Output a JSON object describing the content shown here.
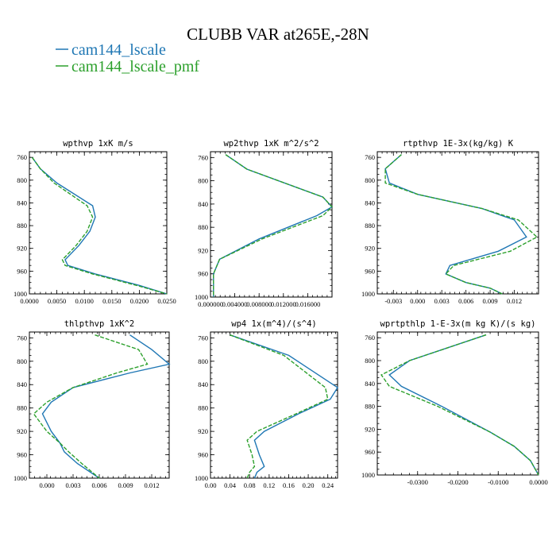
{
  "title": "CLUBB VAR at265E,-28N",
  "legend": [
    {
      "name": "cam144_lscale",
      "color": "#1f77b4",
      "dash": "solid"
    },
    {
      "name": "cam144_lscale_pmf",
      "color": "#2ca02c",
      "dash": "dashed"
    }
  ],
  "chart_data": [
    {
      "type": "line",
      "title": "wpthvp  1xK m/s",
      "xlim": [
        0,
        0.025
      ],
      "ylim": [
        750,
        1000
      ],
      "y_inverted": true,
      "xticks": [
        0,
        0.005,
        0.01,
        0.015,
        0.02,
        0.025
      ],
      "xtick_labels": [
        "0.0000",
        "0.0050",
        "0.0100",
        "0.0150",
        "0.0200",
        "0.0250"
      ],
      "yticks": [
        760,
        800,
        840,
        880,
        920,
        960,
        1000
      ],
      "ytick_labels": [
        "760",
        "800",
        "840",
        "880",
        "920",
        "960",
        "1000"
      ],
      "series": [
        {
          "name": "cam144_lscale",
          "x": [
            0.0005,
            0.002,
            0.005,
            0.0115,
            0.012,
            0.011,
            0.009,
            0.0065,
            0.007,
            0.012,
            0.02,
            0.025
          ],
          "y": [
            760,
            780,
            805,
            845,
            865,
            890,
            915,
            940,
            950,
            965,
            985,
            1000
          ]
        },
        {
          "name": "cam144_lscale_pmf",
          "x": [
            0.0005,
            0.002,
            0.0045,
            0.0105,
            0.0115,
            0.0105,
            0.0085,
            0.006,
            0.0065,
            0.0115,
            0.0195,
            0.025
          ],
          "y": [
            760,
            780,
            805,
            845,
            865,
            890,
            915,
            940,
            950,
            965,
            985,
            1000
          ]
        }
      ]
    },
    {
      "type": "line",
      "title": "wp2thvp  1xK m^2/s^2",
      "xlim": [
        0,
        0.02
      ],
      "ylim": [
        750,
        1000
      ],
      "y_inverted": true,
      "xticks": [
        0,
        0.004,
        0.008,
        0.012,
        0.016
      ],
      "xtick_labels": [
        "0.000000",
        "0.004000",
        "0.008000",
        "0.012000",
        "0.016000"
      ],
      "yticks": [
        760,
        800,
        840,
        880,
        920,
        960,
        1000
      ],
      "ytick_labels": [
        "760",
        "800",
        "840",
        "880",
        "920",
        "960",
        "1000"
      ],
      "series": [
        {
          "name": "cam144_lscale",
          "x": [
            0.0025,
            0.006,
            0.0185,
            0.02,
            0.0175,
            0.008,
            0.0015,
            0.0005,
            0.0005,
            0.0005
          ],
          "y": [
            755,
            780,
            828,
            845,
            860,
            900,
            935,
            960,
            980,
            1000
          ]
        },
        {
          "name": "cam144_lscale_pmf",
          "x": [
            0.0025,
            0.006,
            0.0185,
            0.02,
            0.0185,
            0.0085,
            0.0015,
            0.0005,
            0.0005,
            0.0005
          ],
          "y": [
            755,
            780,
            828,
            845,
            860,
            900,
            935,
            960,
            980,
            1000
          ]
        }
      ]
    },
    {
      "type": "line",
      "title": "rtpthvp  1E-3x(kg/kg) K",
      "xlim": [
        -0.005,
        0.015
      ],
      "ylim": [
        750,
        1000
      ],
      "y_inverted": true,
      "xticks": [
        -0.003,
        0,
        0.003,
        0.006,
        0.009,
        0.012
      ],
      "xtick_labels": [
        "-0.003",
        "0.000",
        "0.003",
        "0.006",
        "0.009",
        "0.012"
      ],
      "yticks": [
        760,
        800,
        840,
        880,
        920,
        960,
        1000
      ],
      "ytick_labels": [
        "760",
        "800",
        "840",
        "880",
        "920",
        "960",
        "1000"
      ],
      "series": [
        {
          "name": "cam144_lscale",
          "x": [
            -0.002,
            -0.004,
            -0.0035,
            0,
            0.008,
            0.012,
            0.0135,
            0.01,
            0.004,
            0.0035,
            0.006,
            0.009,
            0.0105
          ],
          "y": [
            755,
            780,
            805,
            825,
            850,
            870,
            900,
            925,
            950,
            965,
            980,
            990,
            1000
          ]
        },
        {
          "name": "cam144_lscale_pmf",
          "x": [
            -0.002,
            -0.004,
            -0.004,
            0,
            0.008,
            0.0125,
            0.0148,
            0.0115,
            0.0045,
            0.0035,
            0.006,
            0.009,
            0.0105
          ],
          "y": [
            755,
            780,
            805,
            825,
            850,
            870,
            900,
            925,
            950,
            965,
            980,
            990,
            1000
          ]
        }
      ]
    },
    {
      "type": "line",
      "title": "thlpthvp  1xK^2",
      "xlim": [
        -0.002,
        0.014
      ],
      "ylim": [
        750,
        1000
      ],
      "y_inverted": true,
      "xticks": [
        0,
        0.003,
        0.006,
        0.009,
        0.012
      ],
      "xtick_labels": [
        "0.000",
        "0.003",
        "0.006",
        "0.009",
        "0.012"
      ],
      "yticks": [
        760,
        800,
        840,
        880,
        920,
        960,
        1000
      ],
      "ytick_labels": [
        "760",
        "800",
        "840",
        "880",
        "920",
        "960",
        "1000"
      ],
      "series": [
        {
          "name": "cam144_lscale",
          "x": [
            0.0095,
            0.012,
            0.014,
            0.0095,
            0.003,
            0.0005,
            -0.0005,
            0.0005,
            0.0015,
            0.002,
            0.0035,
            0.006
          ],
          "y": [
            755,
            780,
            805,
            820,
            845,
            870,
            890,
            920,
            940,
            955,
            975,
            1000
          ]
        },
        {
          "name": "cam144_lscale_pmf",
          "x": [
            0.0055,
            0.0105,
            0.0115,
            0.008,
            0.003,
            0,
            -0.0015,
            0,
            0.0015,
            0.0025,
            0.004,
            0.006
          ],
          "y": [
            755,
            780,
            805,
            820,
            845,
            870,
            890,
            920,
            940,
            955,
            975,
            1000
          ]
        }
      ]
    },
    {
      "type": "line",
      "title": "wp4  1x(m^4)/(s^4)",
      "xlim": [
        0,
        0.26
      ],
      "ylim": [
        750,
        1000
      ],
      "y_inverted": true,
      "xticks": [
        0,
        0.04,
        0.08,
        0.12,
        0.16,
        0.2,
        0.24
      ],
      "xtick_labels": [
        "0.00",
        "0.04",
        "0.08",
        "0.12",
        "0.16",
        "0.20",
        "0.24"
      ],
      "yticks": [
        760,
        800,
        840,
        880,
        920,
        960,
        1000
      ],
      "ytick_labels": [
        "760",
        "800",
        "840",
        "880",
        "920",
        "960",
        "1000"
      ],
      "series": [
        {
          "name": "cam144_lscale",
          "x": [
            0.04,
            0.16,
            0.26,
            0.245,
            0.18,
            0.11,
            0.09,
            0.1,
            0.11,
            0.095,
            0.09
          ],
          "y": [
            755,
            790,
            845,
            865,
            890,
            920,
            935,
            960,
            980,
            990,
            1000
          ]
        },
        {
          "name": "cam144_lscale_pmf",
          "x": [
            0.04,
            0.15,
            0.235,
            0.24,
            0.175,
            0.095,
            0.075,
            0.085,
            0.09,
            0.08,
            0.075
          ],
          "y": [
            755,
            790,
            845,
            865,
            890,
            920,
            935,
            960,
            980,
            990,
            1000
          ]
        }
      ]
    },
    {
      "type": "line",
      "title": "wprtpthlp  1-E-3x(m kg K)/(s kg)",
      "xlim": [
        -0.04,
        0
      ],
      "ylim": [
        750,
        1000
      ],
      "y_inverted": true,
      "xticks": [
        -0.03,
        -0.02,
        -0.01,
        0
      ],
      "xtick_labels": [
        "-0.0300",
        "-0.0200",
        "-0.0100",
        "0.0000"
      ],
      "yticks": [
        760,
        800,
        840,
        880,
        920,
        960,
        1000
      ],
      "ytick_labels": [
        "760",
        "800",
        "840",
        "880",
        "920",
        "960",
        "1000"
      ],
      "series": [
        {
          "name": "cam144_lscale",
          "x": [
            -0.013,
            -0.032,
            -0.037,
            -0.034,
            -0.024,
            -0.012,
            -0.006,
            -0.002,
            0
          ],
          "y": [
            755,
            800,
            825,
            845,
            880,
            925,
            950,
            975,
            1000
          ]
        },
        {
          "name": "cam144_lscale_pmf",
          "x": [
            -0.013,
            -0.032,
            -0.039,
            -0.037,
            -0.025,
            -0.012,
            -0.006,
            -0.002,
            0
          ],
          "y": [
            755,
            800,
            825,
            845,
            880,
            925,
            950,
            975,
            1000
          ]
        }
      ]
    }
  ]
}
